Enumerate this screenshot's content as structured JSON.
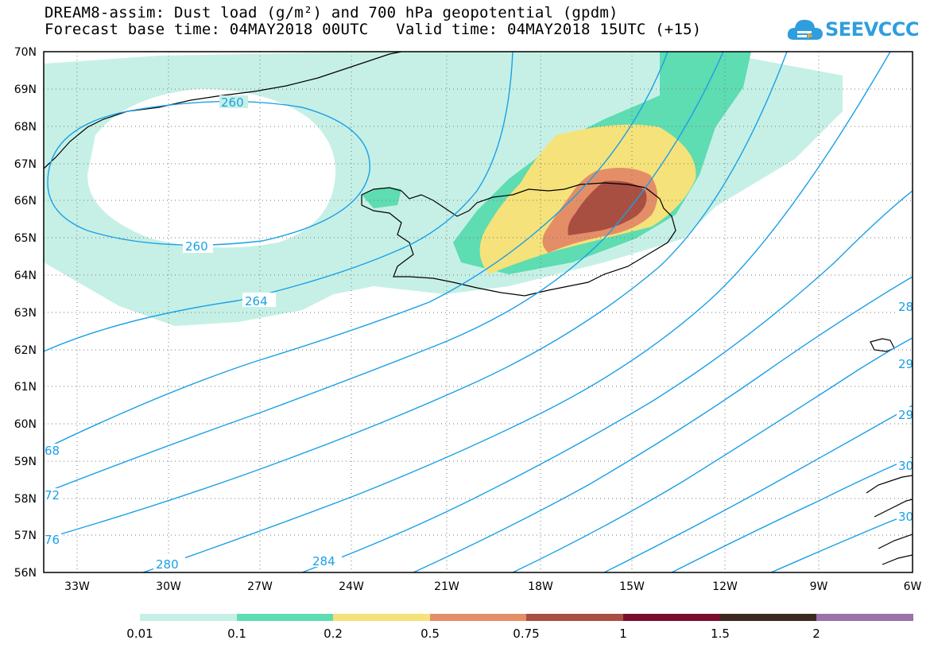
{
  "header": {
    "title_line1": "DREAM8-assim: Dust load (g/m²) and 700 hPa geopotential (gpdm)",
    "title_line2": "Forecast base time: 04MAY2018 00UTC   Valid time: 04MAY2018 15UTC (+15)"
  },
  "logo": {
    "text": "SEEVCCC",
    "icon": "cloud-icon"
  },
  "map": {
    "lat_range": [
      56,
      70
    ],
    "lon_range": [
      -34.5,
      -6
    ],
    "lat_labels": [
      "70N",
      "69N",
      "68N",
      "67N",
      "66N",
      "65N",
      "64N",
      "63N",
      "62N",
      "61N",
      "60N",
      "59N",
      "58N",
      "57N",
      "56N"
    ],
    "lon_labels": [
      "33W",
      "30W",
      "27W",
      "24W",
      "21W",
      "18W",
      "15W",
      "12W",
      "9W",
      "6W"
    ],
    "contour_labels": [
      "260",
      "260",
      "264",
      "68",
      "72",
      "76",
      "280",
      "284",
      "28",
      "29",
      "29",
      "30",
      "30"
    ],
    "contour_color": "#1aa0e6"
  },
  "colorbar": {
    "ticks": [
      "0.01",
      "0.1",
      "0.2",
      "0.5",
      "0.75",
      "1",
      "1.5",
      "2"
    ],
    "colors": [
      "#c6f0e6",
      "#5edcb2",
      "#f5e27a",
      "#e48e68",
      "#a84f42",
      "#7a0d2c",
      "#3c2a20",
      "#9a73a8"
    ]
  }
}
